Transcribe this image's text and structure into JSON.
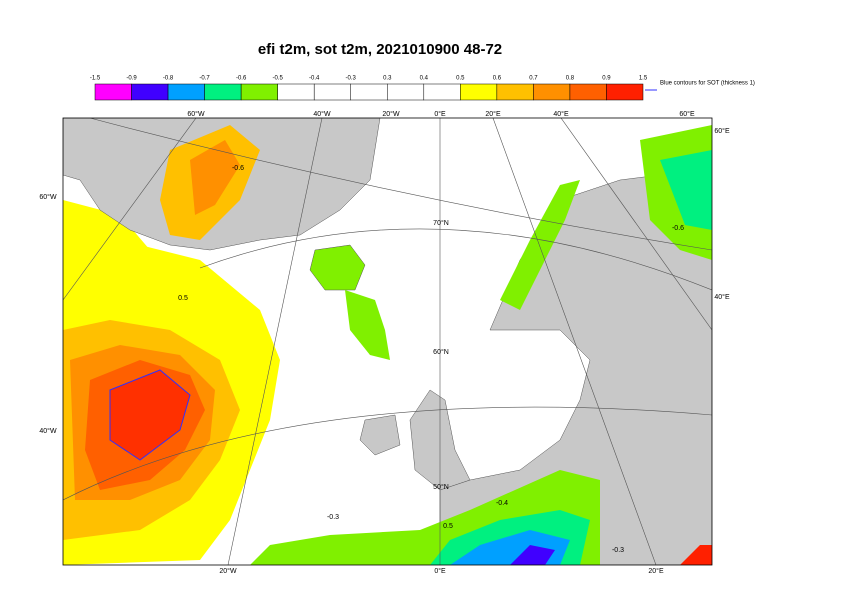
{
  "title": "efi t2m, sot t2m, 2021010900 48-72",
  "colorbar": {
    "labels": [
      "-1.5",
      "-0.9",
      "-0.8",
      "-0.7",
      "-0.6",
      "-0.5",
      "-0.4",
      "-0.3",
      "0.3",
      "0.4",
      "0.5",
      "0.6",
      "0.7",
      "0.8",
      "0.9",
      "1.5"
    ],
    "colors": [
      "#ff00ff",
      "#4000ff",
      "#00a0ff",
      "#00f080",
      "#80f000",
      "#ffffff",
      "#ffffff",
      "#ffffff",
      "#ffffff",
      "#ffffff",
      "#ffff00",
      "#ffc000",
      "#ff9000",
      "#ff6000",
      "#ff2000"
    ],
    "legend": "Blue contours for SOT (thickness 1)"
  },
  "map": {
    "top_labels": [
      "60°W",
      "40°W",
      "20°W",
      "0°E",
      "20°E",
      "40°E",
      "60°E"
    ],
    "left_labels": [
      "60°W",
      "40°W"
    ],
    "right_labels": [
      "60°E",
      "40°E"
    ],
    "bottom_labels": [
      "20°W",
      "0°E",
      "20°E"
    ],
    "lat_labels": [
      "70°N",
      "60°N",
      "50°N"
    ],
    "contour_labels": [
      "-0.6",
      "-0.6",
      "0.5",
      "-0.3",
      "0.5",
      "-0.3",
      "-0.4"
    ]
  }
}
